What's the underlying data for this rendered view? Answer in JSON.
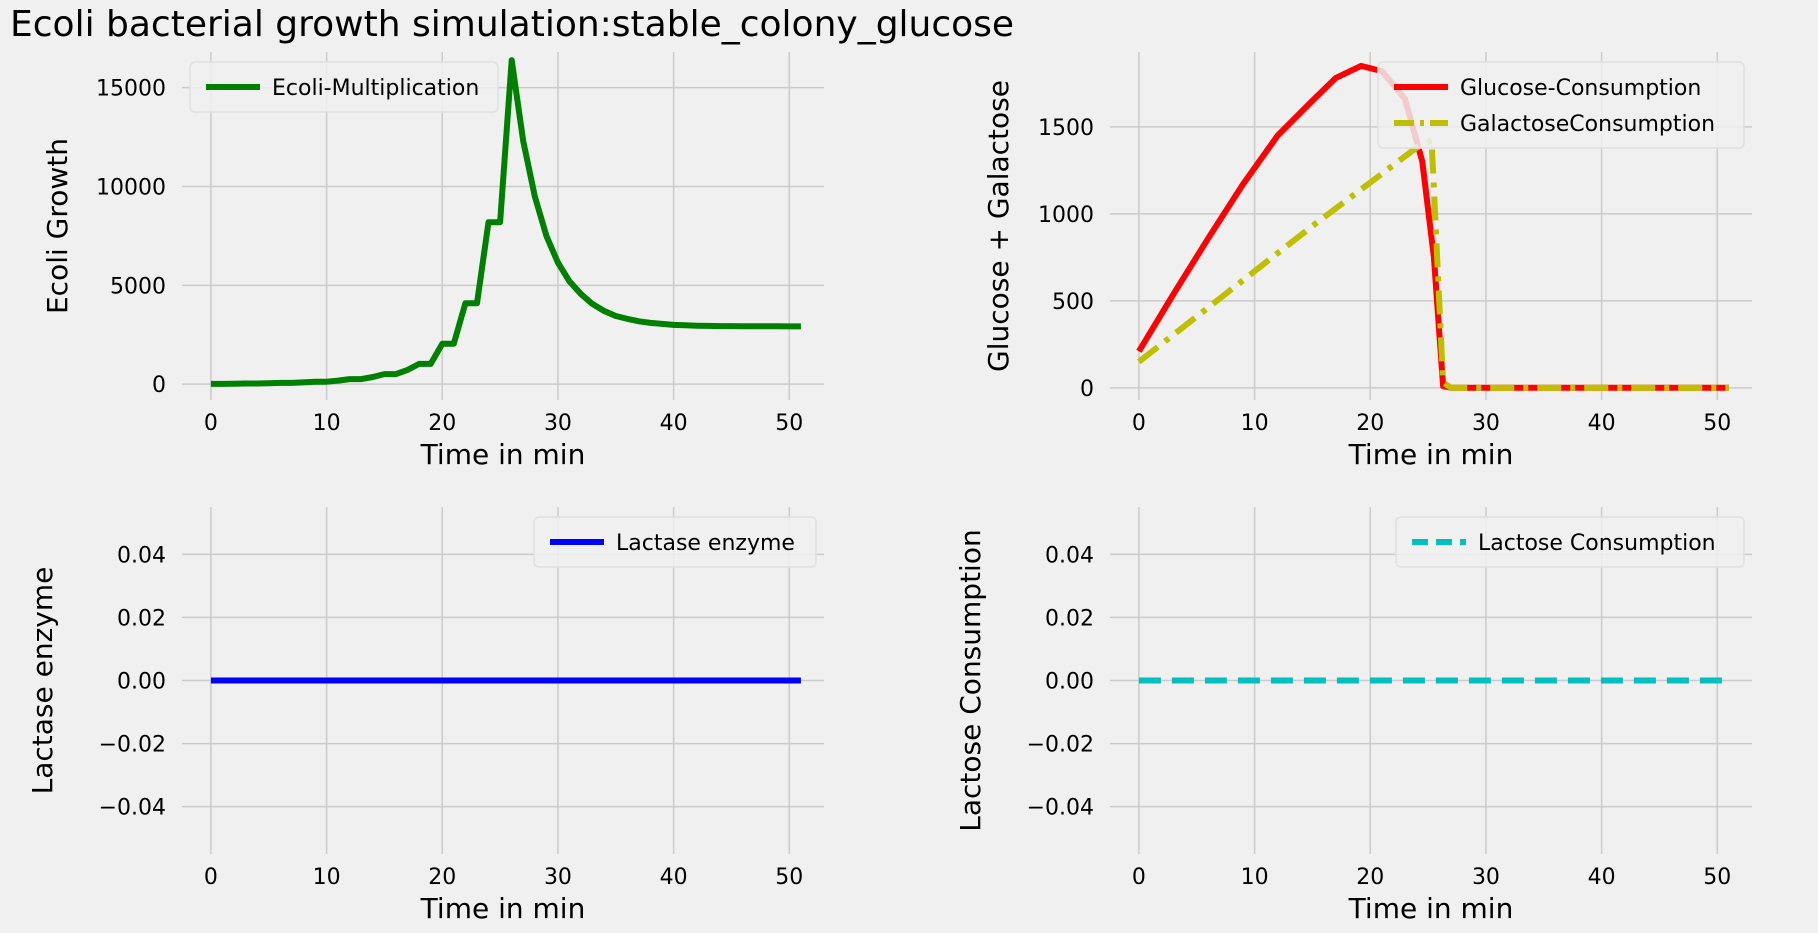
{
  "figure": {
    "title": "Ecoli bacterial growth simulation:stable_colony_glucose"
  },
  "chart_data": [
    {
      "type": "line",
      "xlabel": "Time in min",
      "ylabel": "Ecoli Growth",
      "xlim": [
        -2.5,
        53
      ],
      "ylim": [
        -800,
        16800
      ],
      "xticks": [
        0,
        10,
        20,
        30,
        40,
        50
      ],
      "yticks": [
        0,
        5000,
        10000,
        15000
      ],
      "ytick_labels": [
        "0",
        "5000",
        "10000",
        "15000"
      ],
      "legend": "upper-left",
      "series": [
        {
          "name": "Ecoli-Multiplication",
          "color": "#008000",
          "dash": "solid",
          "x": [
            0,
            1,
            2,
            3,
            4,
            5,
            6,
            7,
            8,
            9,
            10,
            11,
            12,
            13,
            14,
            15,
            16,
            17,
            18,
            19,
            20,
            21,
            22,
            23,
            24,
            25,
            26,
            27,
            28,
            29,
            30,
            31,
            32,
            33,
            34,
            35,
            36,
            37,
            38,
            39,
            40,
            41,
            42,
            43,
            44,
            45,
            46,
            47,
            48,
            49,
            50,
            51
          ],
          "y": [
            16,
            16,
            23,
            32,
            32,
            45,
            64,
            64,
            90,
            128,
            128,
            181,
            256,
            256,
            362,
            512,
            512,
            724,
            1024,
            1024,
            2048,
            2048,
            4096,
            4096,
            8192,
            8192,
            16384,
            12300,
            9500,
            7500,
            6150,
            5200,
            4550,
            4050,
            3700,
            3450,
            3300,
            3180,
            3100,
            3050,
            3000,
            2980,
            2960,
            2950,
            2940,
            2935,
            2930,
            2928,
            2926,
            2925,
            2924,
            2923
          ]
        }
      ]
    },
    {
      "type": "line",
      "xlabel": "Time in min",
      "ylabel": "Glucose + Galactose",
      "xlim": [
        -2.5,
        53
      ],
      "ylim": [
        -70,
        1930
      ],
      "xticks": [
        0,
        10,
        20,
        30,
        40,
        50
      ],
      "yticks": [
        0,
        500,
        1000,
        1500
      ],
      "ytick_labels": [
        "0",
        "500",
        "1000",
        "1500"
      ],
      "legend": "upper-right",
      "series": [
        {
          "name": "Glucose-Consumption",
          "color": "#ff0000",
          "dash": "solid",
          "x": [
            0,
            3,
            6,
            9,
            12,
            15,
            17,
            19.2,
            21,
            23,
            24.5,
            25.5,
            26.3,
            27,
            51
          ],
          "y": [
            210,
            540,
            860,
            1170,
            1450,
            1650,
            1780,
            1850,
            1820,
            1660,
            1300,
            750,
            10,
            0,
            0
          ]
        },
        {
          "name": "GalactoseConsumption",
          "color": "#bfbf00",
          "dash": "dashdot",
          "x": [
            0,
            5,
            10,
            15,
            20,
            24,
            25.3,
            26.3,
            27,
            51
          ],
          "y": [
            150,
            410,
            670,
            930,
            1180,
            1380,
            1420,
            30,
            0,
            0
          ]
        }
      ]
    },
    {
      "type": "line",
      "xlabel": "Time in min",
      "ylabel": "Lactase enzyme",
      "xlim": [
        -2.5,
        53
      ],
      "ylim": [
        -0.055,
        0.055
      ],
      "xticks": [
        0,
        10,
        20,
        30,
        40,
        50
      ],
      "yticks": [
        -0.04,
        -0.02,
        0.0,
        0.02,
        0.04
      ],
      "ytick_labels": [
        "−0.04",
        "−0.02",
        "0.00",
        "0.02",
        "0.04"
      ],
      "legend": "upper-right",
      "series": [
        {
          "name": "Lactase enzyme",
          "color": "#0000ff",
          "dash": "solid",
          "x": [
            0,
            51
          ],
          "y": [
            0,
            0
          ]
        }
      ]
    },
    {
      "type": "line",
      "xlabel": "Time in min",
      "ylabel": "Lactose Consumption",
      "xlim": [
        -2.5,
        53
      ],
      "ylim": [
        -0.055,
        0.055
      ],
      "xticks": [
        0,
        10,
        20,
        30,
        40,
        50
      ],
      "yticks": [
        -0.04,
        -0.02,
        0.0,
        0.02,
        0.04
      ],
      "ytick_labels": [
        "−0.04",
        "−0.02",
        "0.00",
        "0.02",
        "0.04"
      ],
      "legend": "upper-right",
      "series": [
        {
          "name": "Lactose Consumption",
          "color": "#00bfbf",
          "dash": "dashed",
          "x": [
            0,
            51
          ],
          "y": [
            0,
            0
          ]
        }
      ]
    }
  ]
}
